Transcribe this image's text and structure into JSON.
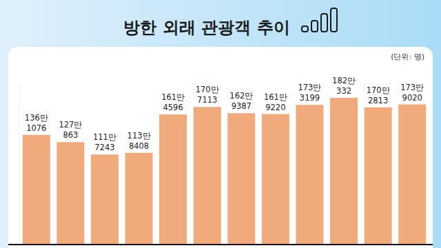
{
  "chart_data": {
    "type": "bar",
    "title": "방한 외래 관광객 추이",
    "y_label": "(단위: 명)",
    "categories": [
      null,
      null,
      null,
      null,
      null,
      null,
      null,
      null,
      null,
      null,
      null,
      null
    ],
    "values": [
      1361076,
      1270863,
      1117243,
      1138408,
      1614596,
      1707113,
      1629387,
      1619220,
      1733199,
      1820332,
      1702813,
      1739020
    ],
    "value_labels": [
      "136만\n1076",
      "127만\n863",
      "111만\n7243",
      "113만\n8408",
      "161만\n4596",
      "170만\n7113",
      "162만\n9387",
      "161만\n9220",
      "173만\n3199",
      "182만\n332",
      "170만\n2813",
      "173만\n9020"
    ],
    "color": "#f0aa7c",
    "ylim": [
      0,
      2000000
    ],
    "grid": false,
    "data_labels": true,
    "tick_labels": false
  }
}
